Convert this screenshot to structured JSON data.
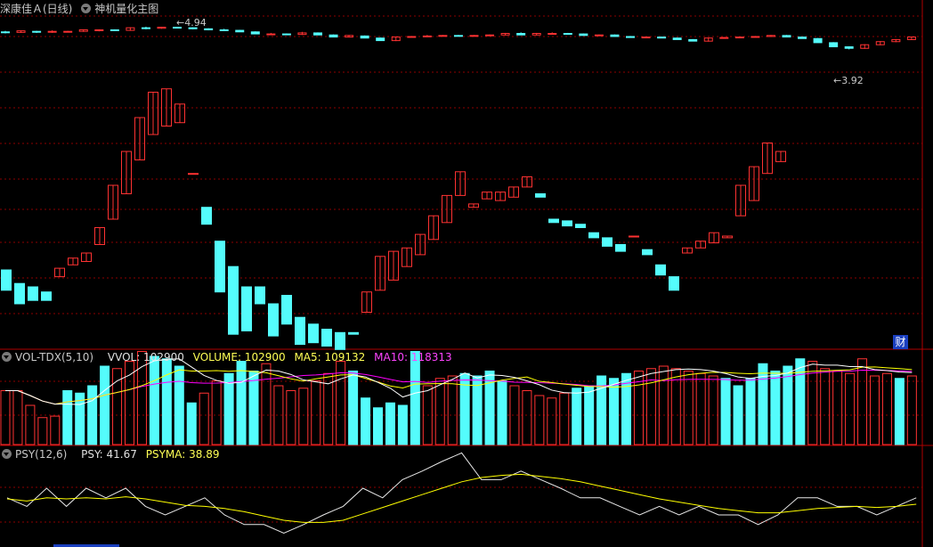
{
  "header": {
    "stock_title": "深康佳Ａ(日线)",
    "indicator_title": "神机量化主图"
  },
  "price_panel": {
    "high_label": "4.94",
    "low_label": "3.92"
  },
  "volume_panel": {
    "name": "VOL-TDX(5,10)",
    "vvol_label": "VVOL: 102900",
    "volume_label": "VOLUME: 102900",
    "ma5_label": "MA5: 109132",
    "ma10_label": "MA10: 118313"
  },
  "psy_panel": {
    "name": "PSY(12,6)",
    "psy_label": "PSY: 41.67",
    "psyma_label": "PSYMA: 38.89"
  },
  "side_button": "财",
  "colors": {
    "up": "#ff3232",
    "down": "#54fcfc",
    "ma5": "#ffffff",
    "ma10": "#ffff00",
    "ma20": "#ff00ff",
    "psyma": "#ffff00",
    "grid": "#8b0000",
    "axis": "#b00000"
  },
  "chart_data": [
    {
      "type": "candlestick",
      "name": "price",
      "ylim": [
        3.8,
        5.0
      ],
      "annotations": [
        {
          "label": "4.94",
          "kind": "high"
        },
        {
          "label": "3.92",
          "kind": "low"
        }
      ],
      "bars": [
        [
          4.84,
          4.86,
          4.81,
          4.83
        ],
        [
          4.83,
          4.87,
          4.82,
          4.86
        ],
        [
          4.85,
          4.86,
          4.82,
          4.84
        ],
        [
          4.84,
          4.87,
          4.82,
          4.85
        ],
        [
          4.85,
          4.86,
          4.83,
          4.85
        ],
        [
          4.85,
          4.89,
          4.84,
          4.88
        ],
        [
          4.87,
          4.89,
          4.85,
          4.88
        ],
        [
          4.88,
          4.89,
          4.86,
          4.87
        ],
        [
          4.87,
          4.93,
          4.86,
          4.92
        ],
        [
          4.92,
          4.94,
          4.89,
          4.91
        ],
        [
          4.91,
          4.94,
          4.9,
          4.93
        ],
        [
          4.93,
          4.94,
          4.91,
          4.92
        ],
        [
          4.92,
          4.93,
          4.89,
          4.9
        ],
        [
          4.9,
          4.91,
          4.87,
          4.88
        ],
        [
          4.88,
          4.9,
          4.86,
          4.87
        ],
        [
          4.87,
          4.88,
          4.84,
          4.84
        ],
        [
          4.84,
          4.85,
          4.8,
          4.8
        ],
        [
          4.8,
          4.82,
          4.79,
          4.8
        ],
        [
          4.8,
          4.81,
          4.78,
          4.79
        ],
        [
          4.79,
          4.84,
          4.78,
          4.82
        ],
        [
          4.82,
          4.83,
          4.78,
          4.78
        ],
        [
          4.78,
          4.79,
          4.74,
          4.74
        ],
        [
          4.74,
          4.78,
          4.73,
          4.77
        ],
        [
          4.76,
          4.77,
          4.72,
          4.72
        ],
        [
          4.72,
          4.73,
          4.67,
          4.67
        ],
        [
          4.67,
          4.75,
          4.66,
          4.74
        ],
        [
          4.74,
          4.76,
          4.73,
          4.75
        ],
        [
          4.75,
          4.78,
          4.74,
          4.76
        ],
        [
          4.76,
          4.78,
          4.75,
          4.77
        ],
        [
          4.77,
          4.78,
          4.75,
          4.76
        ],
        [
          4.76,
          4.78,
          4.75,
          4.77
        ],
        [
          4.77,
          4.79,
          4.76,
          4.78
        ],
        [
          4.78,
          4.82,
          4.77,
          4.81
        ],
        [
          4.81,
          4.83,
          4.78,
          4.78
        ],
        [
          4.78,
          4.82,
          4.77,
          4.81
        ],
        [
          4.81,
          4.83,
          4.8,
          4.81
        ],
        [
          4.81,
          4.82,
          4.79,
          4.8
        ],
        [
          4.8,
          4.81,
          4.77,
          4.77
        ],
        [
          4.77,
          4.79,
          4.76,
          4.78
        ],
        [
          4.78,
          4.79,
          4.75,
          4.75
        ],
        [
          4.75,
          4.76,
          4.73,
          4.73
        ],
        [
          4.73,
          4.75,
          4.72,
          4.74
        ],
        [
          4.74,
          4.75,
          4.72,
          4.72
        ],
        [
          4.72,
          4.73,
          4.69,
          4.69
        ],
        [
          4.69,
          4.7,
          4.66,
          4.66
        ],
        [
          4.66,
          4.73,
          4.65,
          4.72
        ],
        [
          4.72,
          4.74,
          4.71,
          4.73
        ],
        [
          4.73,
          4.75,
          4.72,
          4.74
        ],
        [
          4.74,
          4.76,
          4.73,
          4.75
        ],
        [
          4.75,
          4.78,
          4.74,
          4.77
        ],
        [
          4.77,
          4.78,
          4.74,
          4.74
        ],
        [
          4.74,
          4.75,
          4.71,
          4.71
        ],
        [
          4.71,
          4.72,
          4.63,
          4.63
        ],
        [
          4.63,
          4.64,
          4.55,
          4.55
        ],
        [
          4.55,
          4.56,
          4.5,
          4.52
        ],
        [
          4.52,
          4.6,
          4.51,
          4.59
        ],
        [
          4.59,
          4.66,
          4.58,
          4.65
        ],
        [
          4.65,
          4.7,
          4.64,
          4.69
        ],
        [
          4.69,
          4.75,
          4.68,
          4.74
        ]
      ]
    },
    {
      "type": "candlestick",
      "name": "indicator",
      "bars": [
        [
          0.3,
          0.3,
          0.18,
          0.18
        ],
        [
          0.22,
          0.22,
          0.1,
          0.1
        ],
        [
          0.2,
          0.2,
          0.12,
          0.12
        ],
        [
          0.17,
          0.17,
          0.12,
          0.12
        ],
        [
          0.26,
          0.31,
          0.26,
          0.31
        ],
        [
          0.33,
          0.37,
          0.33,
          0.37
        ],
        [
          0.35,
          0.4,
          0.35,
          0.4
        ],
        [
          0.45,
          0.55,
          0.45,
          0.55
        ],
        [
          0.6,
          0.8,
          0.6,
          0.8
        ],
        [
          0.75,
          1.0,
          0.75,
          1.0
        ],
        [
          0.95,
          1.2,
          0.95,
          1.2
        ],
        [
          1.1,
          1.35,
          1.1,
          1.35
        ],
        [
          1.15,
          1.37,
          1.15,
          1.37
        ],
        [
          1.17,
          1.28,
          1.17,
          1.28
        ],
        [
          0.87,
          0.87,
          0.87,
          0.87
        ],
        [
          0.67,
          0.67,
          0.57,
          0.57
        ],
        [
          0.47,
          0.47,
          0.17,
          0.17
        ],
        [
          0.32,
          0.32,
          -0.08,
          -0.08
        ],
        [
          0.2,
          0.2,
          -0.06,
          -0.06
        ],
        [
          0.2,
          0.2,
          0.1,
          0.1
        ],
        [
          0.1,
          0.1,
          -0.09,
          -0.09
        ],
        [
          0.15,
          0.15,
          -0.02,
          -0.02
        ],
        [
          0.02,
          0.02,
          -0.14,
          -0.14
        ],
        [
          -0.02,
          -0.02,
          -0.13,
          -0.13
        ],
        [
          -0.05,
          -0.05,
          -0.15,
          -0.15
        ],
        [
          -0.07,
          -0.07,
          -0.17,
          -0.17
        ],
        [
          -0.07,
          -0.08,
          -0.07,
          -0.08
        ],
        [
          0.05,
          0.17,
          0.05,
          0.17
        ],
        [
          0.18,
          0.38,
          0.18,
          0.38
        ],
        [
          0.24,
          0.41,
          0.24,
          0.41
        ],
        [
          0.32,
          0.43,
          0.32,
          0.43
        ],
        [
          0.39,
          0.51,
          0.39,
          0.51
        ],
        [
          0.48,
          0.62,
          0.48,
          0.62
        ],
        [
          0.58,
          0.74,
          0.58,
          0.74
        ],
        [
          0.74,
          0.88,
          0.74,
          0.88
        ],
        [
          0.67,
          0.69,
          0.67,
          0.69
        ],
        [
          0.72,
          0.76,
          0.72,
          0.76
        ],
        [
          0.71,
          0.76,
          0.71,
          0.76
        ],
        [
          0.73,
          0.79,
          0.73,
          0.79
        ],
        [
          0.79,
          0.85,
          0.79,
          0.85
        ],
        [
          0.75,
          0.73,
          0.75,
          0.73
        ],
        [
          0.6,
          0.58,
          0.6,
          0.58
        ],
        [
          0.59,
          0.56,
          0.59,
          0.56
        ],
        [
          0.57,
          0.55,
          0.57,
          0.55
        ],
        [
          0.52,
          0.49,
          0.52,
          0.49
        ],
        [
          0.49,
          0.44,
          0.49,
          0.44
        ],
        [
          0.45,
          0.41,
          0.45,
          0.41
        ],
        [
          0.5,
          0.5,
          0.5,
          0.5
        ],
        [
          0.42,
          0.39,
          0.42,
          0.39
        ],
        [
          0.33,
          0.27,
          0.33,
          0.27
        ],
        [
          0.26,
          0.18,
          0.26,
          0.18
        ],
        [
          0.4,
          0.43,
          0.4,
          0.43
        ],
        [
          0.43,
          0.47,
          0.43,
          0.47
        ],
        [
          0.46,
          0.52,
          0.46,
          0.52
        ],
        [
          0.49,
          0.5,
          0.49,
          0.5
        ],
        [
          0.62,
          0.8,
          0.62,
          0.8
        ],
        [
          0.71,
          0.91,
          0.71,
          0.91
        ],
        [
          0.87,
          1.05,
          0.87,
          1.05
        ],
        [
          0.94,
          1.0,
          0.94,
          1.0
        ]
      ]
    },
    {
      "type": "bar",
      "name": "volume",
      "series_names": [
        "VOLUME",
        "MA5",
        "MA10"
      ],
      "values": [
        110,
        110,
        80,
        55,
        58,
        110,
        105,
        120,
        160,
        155,
        170,
        190,
        180,
        175,
        160,
        85,
        105,
        130,
        145,
        170,
        150,
        165,
        120,
        110,
        115,
        130,
        145,
        170,
        150,
        95,
        75,
        85,
        80,
        190,
        120,
        135,
        140,
        145,
        140,
        150,
        130,
        120,
        110,
        100,
        95,
        105,
        115,
        120,
        140,
        135,
        145,
        150,
        155,
        160,
        155,
        150,
        145,
        140,
        135,
        120,
        135,
        165,
        150,
        160,
        175,
        170,
        155,
        150,
        145,
        175,
        140,
        145,
        135,
        140
      ]
    },
    {
      "type": "line",
      "name": "psy",
      "series_names": [
        "PSY",
        "PSYMA"
      ],
      "psy": [
        41,
        33,
        50,
        33,
        50,
        41,
        50,
        33,
        25,
        33,
        41,
        25,
        16,
        16,
        8,
        16,
        25,
        33,
        50,
        41,
        58,
        66,
        75,
        83,
        58,
        58,
        66,
        58,
        50,
        41,
        41,
        33,
        25,
        33,
        25,
        33,
        25,
        25,
        16,
        25,
        41,
        41,
        33,
        33,
        25,
        33,
        41
      ],
      "psyma": [
        40,
        38,
        41,
        40,
        41,
        40,
        42,
        40,
        37,
        34,
        33,
        31,
        28,
        24,
        20,
        18,
        18,
        20,
        26,
        32,
        38,
        44,
        50,
        56,
        60,
        62,
        63,
        61,
        59,
        56,
        52,
        48,
        44,
        40,
        37,
        34,
        31,
        29,
        27,
        27,
        29,
        31,
        32,
        33,
        32,
        33,
        35
      ]
    }
  ]
}
